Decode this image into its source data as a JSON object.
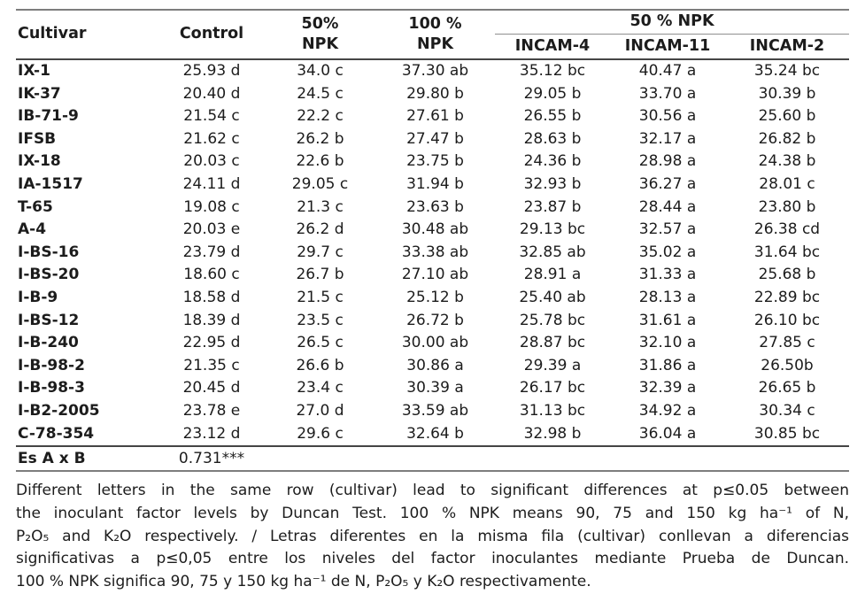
{
  "header": {
    "cultivar": "Cultivar",
    "control": "Control",
    "npk50": "50%\nNPK",
    "npk100": "100 %\nNPK",
    "npk50_group": "50 % NPK",
    "incam4": "INCAM-4",
    "incam11": "INCAM-11",
    "incam2": "INCAM-2"
  },
  "table": {
    "rows": [
      {
        "cultivar": "IX-1",
        "values": [
          "25.93 d",
          "34.0 c",
          "37.30 ab",
          "35.12 bc",
          "40.47 a",
          "35.24 bc"
        ]
      },
      {
        "cultivar": "IK-37",
        "values": [
          "20.40 d",
          "24.5 c",
          "29.80 b",
          "29.05 b",
          "33.70 a",
          "30.39 b"
        ]
      },
      {
        "cultivar": "IB-71-9",
        "values": [
          "21.54 c",
          "22.2 c",
          "27.61 b",
          "26.55 b",
          "30.56 a",
          "25.60  b"
        ]
      },
      {
        "cultivar": "IFSB",
        "values": [
          "21.62 c",
          "26.2 b",
          "27.47 b",
          "28.63 b",
          "32.17 a",
          "26.82 b"
        ]
      },
      {
        "cultivar": "IX-18",
        "values": [
          "20.03 c",
          "22.6 b",
          "23.75 b",
          "24.36 b",
          "28.98 a",
          "24.38 b"
        ]
      },
      {
        "cultivar": "IA-1517",
        "values": [
          "24.11 d",
          "29.05 c",
          "31.94 b",
          "32.93 b",
          "36.27 a",
          "28.01 c"
        ]
      },
      {
        "cultivar": "T-65",
        "values": [
          "19.08 c",
          "21.3 c",
          "23.63 b",
          "23.87 b",
          "28.44 a",
          "23.80 b"
        ]
      },
      {
        "cultivar": "A-4",
        "values": [
          "20.03 e",
          "26.2 d",
          "30.48 ab",
          "29.13 bc",
          "32.57 a",
          "26.38 cd"
        ]
      },
      {
        "cultivar": "I-BS-16",
        "values": [
          "23.79 d",
          "29.7 c",
          "33.38 ab",
          "32.85 ab",
          "35.02 a",
          "31.64 bc"
        ]
      },
      {
        "cultivar": "I-BS-20",
        "values": [
          "18.60 c",
          "26.7 b",
          "27.10 ab",
          "28.91 a",
          "31.33  a",
          "25.68 b"
        ]
      },
      {
        "cultivar": "I-B-9",
        "values": [
          "18.58 d",
          "21.5 c",
          "25.12 b",
          "25.40 ab",
          "28.13 a",
          "22.89 bc"
        ]
      },
      {
        "cultivar": "I-BS-12",
        "values": [
          "18.39 d",
          "23.5 c",
          "26.72 b",
          "25.78 bc",
          "31.61 a",
          "26.10 bc"
        ]
      },
      {
        "cultivar": "I-B-240",
        "values": [
          "22.95 d",
          "26.5 c",
          "30.00 ab",
          "28.87 bc",
          "32.10 a",
          "27.85 c"
        ]
      },
      {
        "cultivar": "I-B-98-2",
        "values": [
          "21.35 c",
          "26.6 b",
          "30.86 a",
          "29.39 a",
          "31.86 a",
          "26.50b"
        ]
      },
      {
        "cultivar": "I-B-98-3",
        "values": [
          "20.45 d",
          "23.4 c",
          "30.39 a",
          "26.17 bc",
          "32.39 a",
          "26.65 b"
        ]
      },
      {
        "cultivar": "I-B2-2005",
        "values": [
          "23.78 e",
          "27.0 d",
          "33.59 ab",
          "31.13 bc",
          "34.92 a",
          "30.34 c"
        ]
      },
      {
        "cultivar": "C-78-354",
        "values": [
          "23.12 d",
          "29.6 c",
          "32.64 b",
          "32.98 b",
          "36.04 a",
          "30.85 bc"
        ]
      }
    ],
    "footer": {
      "label": "Es A x B",
      "value": "0.731***"
    }
  },
  "footnote": {
    "lines": [
      "Different letters in the same row (cultivar) lead to significant differences at p≤0.05 between",
      "the inoculant factor levels by Duncan Test. 100 % NPK means 90, 75 and 150 kg ha⁻¹ of N,",
      "P₂O₅ and K₂O respectively. / Letras diferentes en la misma fila (cultivar) conllevan a diferencias",
      "significativas a p≤0,05 entre los niveles del factor inoculantes mediante Prueba de Duncan.",
      "100 % NPK significa 90, 75 y 150 kg ha⁻¹ de N, P₂O₅ y K₂O respectivamente."
    ]
  },
  "colors": {
    "text": "#1c1c1c",
    "rule_light": "#7d7d7d",
    "rule_dark": "#454545"
  }
}
